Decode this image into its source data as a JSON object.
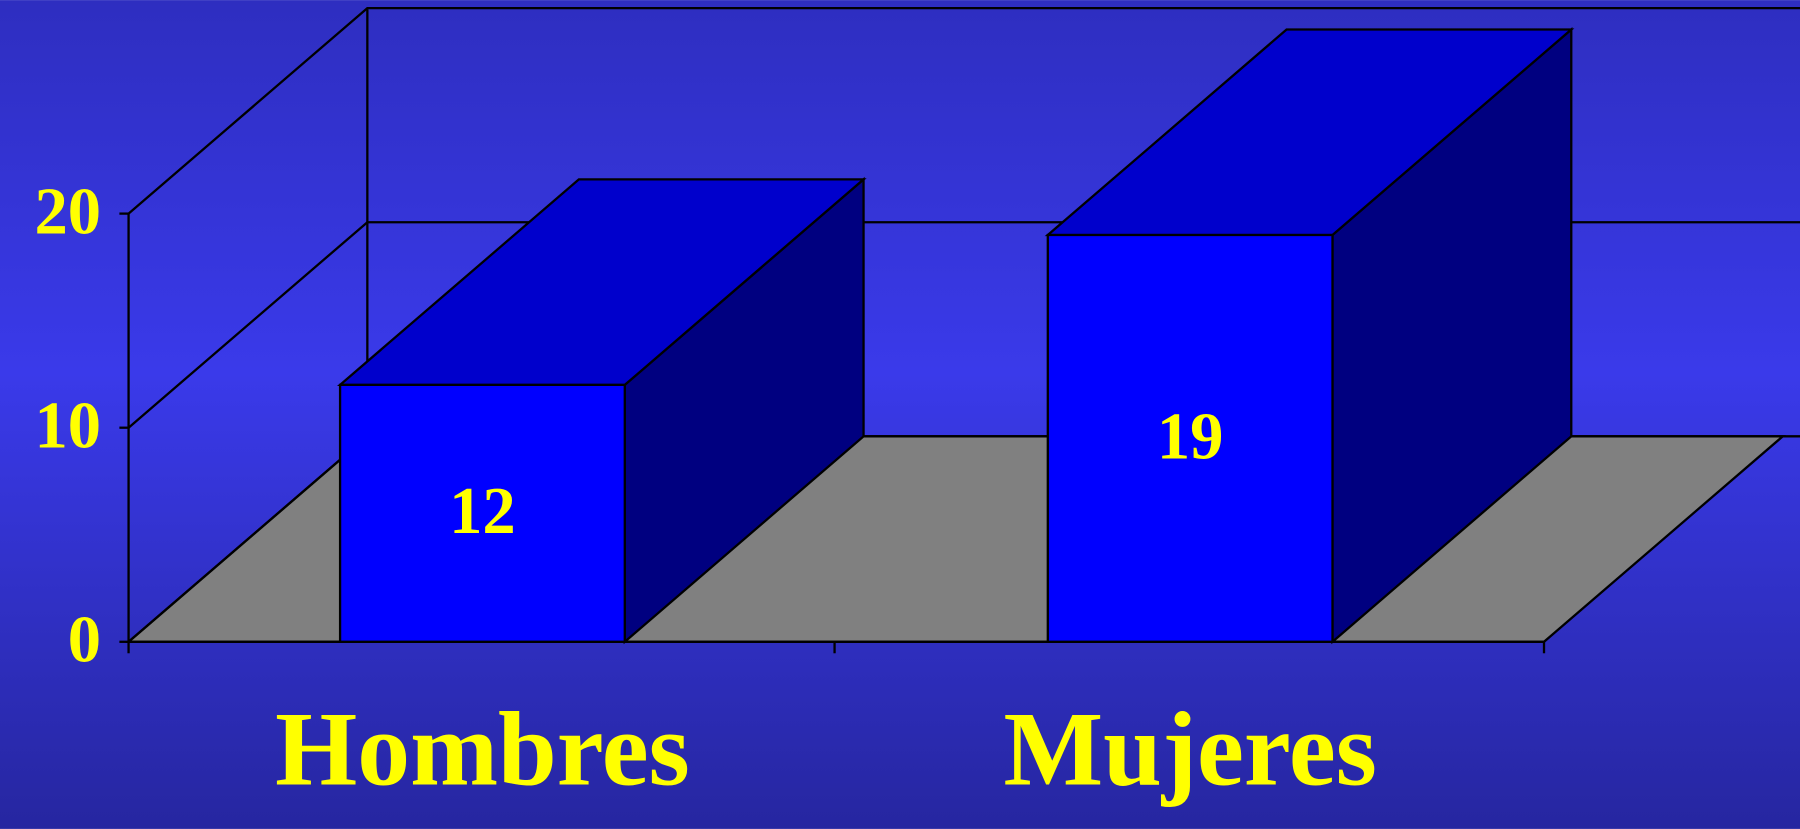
{
  "chart_data": {
    "type": "bar3d",
    "categories": [
      "Hombres",
      "Mujeres"
    ],
    "values": [
      12,
      19
    ],
    "ylim": [
      0,
      20
    ],
    "yticks": [
      0,
      10,
      20
    ],
    "grid": true,
    "color": "#0000ff"
  }
}
